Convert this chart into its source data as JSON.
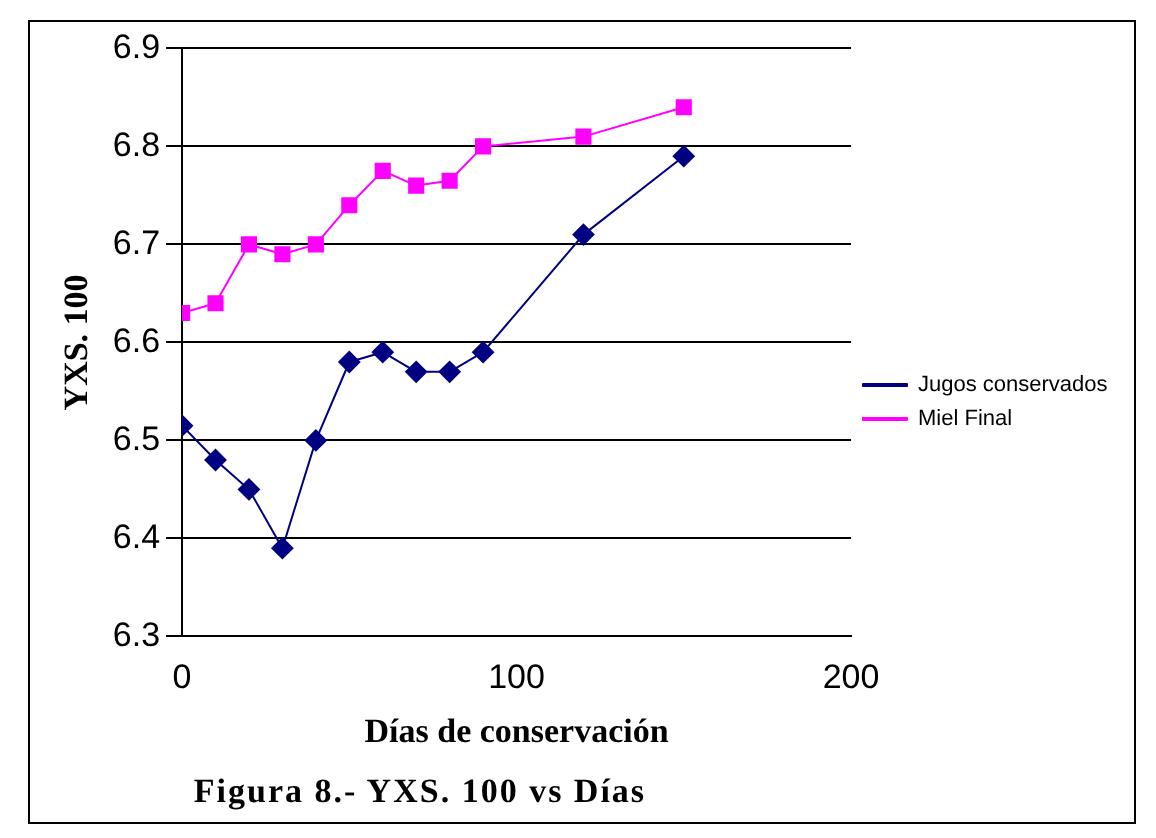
{
  "chart_data": {
    "type": "line",
    "title": "Figura 8.- YXS. 100 vs Días",
    "xlabel": "Días de conservación",
    "ylabel": "YXS. 100",
    "x": [
      0,
      10,
      20,
      30,
      40,
      50,
      60,
      70,
      80,
      90,
      120,
      150
    ],
    "series": [
      {
        "name": "Jugos conservados",
        "color": "#000080",
        "marker": "diamond",
        "values": [
          6.515,
          6.48,
          6.45,
          6.39,
          6.5,
          6.58,
          6.59,
          6.57,
          6.57,
          6.59,
          6.71,
          6.79
        ]
      },
      {
        "name": "Miel Final",
        "color": "#ff00ff",
        "marker": "square",
        "values": [
          6.63,
          6.64,
          6.7,
          6.69,
          6.7,
          6.74,
          6.775,
          6.76,
          6.765,
          6.8,
          6.81,
          6.84
        ]
      }
    ],
    "xlim": [
      0,
      200
    ],
    "xticks": [
      0,
      100,
      200
    ],
    "ylim": [
      6.3,
      6.9
    ],
    "yticks": [
      6.3,
      6.4,
      6.5,
      6.6,
      6.7,
      6.8,
      6.9
    ],
    "grid": "y",
    "legend": "right"
  }
}
